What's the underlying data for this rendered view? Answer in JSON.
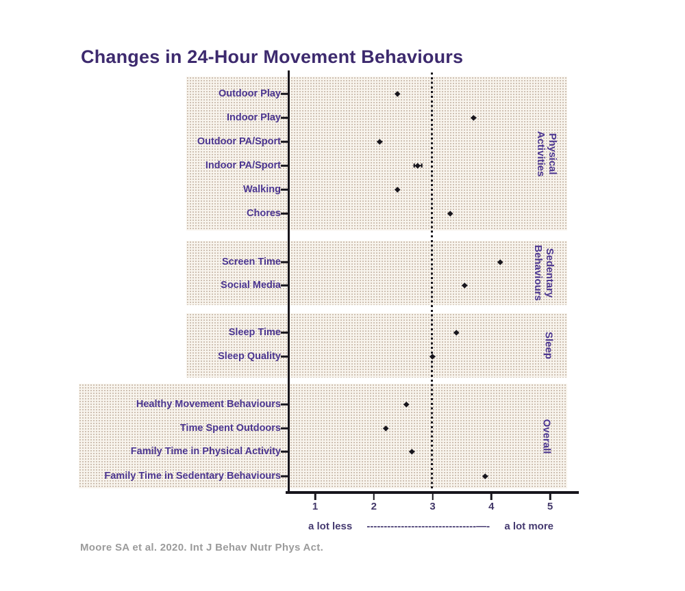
{
  "title": "Changes in 24-Hour Movement Behaviours",
  "footer": "Moore SA et al. 2020. Int J Behav Nutr Phys Act.",
  "colors": {
    "title_text": "#3d2a6e",
    "label_text": "#4b3590",
    "axis": "#17151c",
    "footer_text": "#9b9b9b",
    "band_background": "#f8f4ed",
    "band_dot": "#c2b2a2"
  },
  "x_annotation": {
    "less_label": "a lot less",
    "dashes": "--------------------------------—-",
    "more_label": "a lot more"
  },
  "chart_data": {
    "type": "scatter",
    "title": "Changes in 24-Hour Movement Behaviours",
    "orientation": "horizontal-dot-plot",
    "xlim": [
      0.55,
      5.5
    ],
    "x_ticks": [
      1,
      2,
      3,
      4,
      5
    ],
    "reference_line_x": 3,
    "x_scale_note": "1 = a lot less, 3 = no change, 5 = a lot more",
    "legend_position": "right-rotated-section-labels",
    "grid": "dotted-band-texture",
    "sections": [
      {
        "name": "Physical Activities",
        "items": [
          {
            "label": "Outdoor Play",
            "value": 2.4
          },
          {
            "label": "Indoor Play",
            "value": 3.7
          },
          {
            "label": "Outdoor PA/Sport",
            "value": 2.1
          },
          {
            "label": "Indoor PA/Sport",
            "value": 2.75,
            "error": 0.05
          },
          {
            "label": "Walking",
            "value": 2.4
          },
          {
            "label": "Chores",
            "value": 3.3
          }
        ]
      },
      {
        "name": "Sedentary Behaviours",
        "items": [
          {
            "label": "Screen Time",
            "value": 4.15
          },
          {
            "label": "Social Media",
            "value": 3.55
          }
        ]
      },
      {
        "name": "Sleep",
        "items": [
          {
            "label": "Sleep Time",
            "value": 3.4
          },
          {
            "label": "Sleep Quality",
            "value": 3.0
          }
        ]
      },
      {
        "name": "Overall",
        "items": [
          {
            "label": "Healthy Movement Behaviours",
            "value": 2.55
          },
          {
            "label": "Time Spent Outdoors",
            "value": 2.2
          },
          {
            "label": "Family Time in Physical Activity",
            "value": 2.65
          },
          {
            "label": "Family Time in Sedentary Behaviours",
            "value": 3.9
          }
        ]
      }
    ]
  }
}
